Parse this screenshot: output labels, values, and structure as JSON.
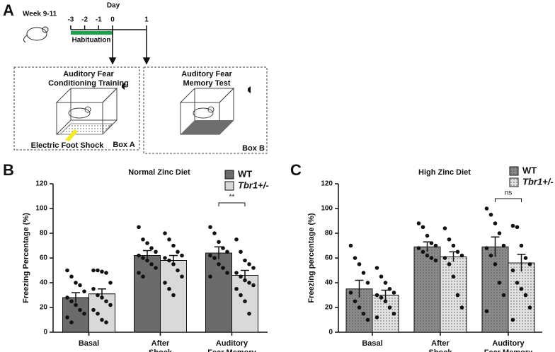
{
  "panel_a": {
    "panel": "A",
    "week": "Week 9-11",
    "day_label": "Day",
    "days": [
      -3,
      -2,
      -1,
      0,
      1
    ],
    "habituation": "Habituation",
    "box_a": {
      "title": [
        "Auditory Fear",
        "Conditioning Training"
      ],
      "shock": "Electric Foot Shock",
      "name": "Box A"
    },
    "box_b": {
      "title": [
        "Auditory Fear",
        "Memory Test"
      ],
      "name": "Box B"
    }
  },
  "chart_data": [
    {
      "type": "bar",
      "panel": "B",
      "title": "Normal Zinc Diet",
      "ylabel": "Freezing Percentage (%)",
      "categories": [
        "Basal",
        "After\nShock",
        "Auditory\nFear Memory"
      ],
      "ylim": [
        0,
        120
      ],
      "yticks": [
        0,
        20,
        40,
        60,
        80,
        100,
        120
      ],
      "pattern": false,
      "series": [
        {
          "name": "WT",
          "color": "#6b6b6b",
          "values": [
            28,
            62,
            64
          ],
          "errors": [
            4,
            4,
            5
          ],
          "points": [
            [
              50,
              45,
              40,
              38,
              33,
              28,
              25,
              22,
              18,
              15,
              12,
              8
            ],
            [
              85,
              75,
              72,
              68,
              65,
              62,
              60,
              58,
              55,
              52,
              48,
              45
            ],
            [
              85,
              80,
              73,
              68,
              65,
              62,
              60,
              55,
              52,
              48,
              45,
              60
            ]
          ]
        },
        {
          "name": "Tbr1+/-",
          "color": "#d9d9d9",
          "values": [
            31,
            58,
            46
          ],
          "errors": [
            4,
            4,
            4
          ],
          "points": [
            [
              50,
              50,
              49,
              48,
              40,
              35,
              30,
              28,
              25,
              22,
              18,
              15,
              10,
              8
            ],
            [
              80,
              75,
              70,
              65,
              62,
              60,
              58,
              55,
              50,
              45,
              40,
              35,
              30
            ],
            [
              75,
              65,
              58,
              55,
              52,
              48,
              45,
              42,
              40,
              38,
              35,
              30,
              25,
              15
            ]
          ]
        }
      ],
      "annotations": [
        {
          "category": 2,
          "text": "**"
        }
      ]
    },
    {
      "type": "bar",
      "panel": "C",
      "title": "High Zinc Diet",
      "ylabel": "Freezing percentage (%)",
      "categories": [
        "Basal",
        "After\nShock",
        "Auditory\nFear Memory"
      ],
      "ylim": [
        0,
        120
      ],
      "yticks": [
        0,
        20,
        40,
        60,
        80,
        100,
        120
      ],
      "pattern": true,
      "series": [
        {
          "name": "WT",
          "color": "#8a8a8a",
          "values": [
            35,
            69,
            69
          ],
          "errors": [
            7,
            4,
            8
          ],
          "points": [
            [
              70,
              60,
              55,
              48,
              40,
              32,
              25,
              20,
              15,
              10
            ],
            [
              88,
              85,
              78,
              72,
              70,
              68,
              65,
              62,
              60,
              58
            ],
            [
              100,
              95,
              88,
              80,
              70,
              68,
              62,
              55,
              40,
              30,
              17
            ]
          ]
        },
        {
          "name": "Tbr1+/-",
          "color": "#e2e2e2",
          "values": [
            30,
            61,
            56
          ],
          "errors": [
            4,
            4,
            7
          ],
          "points": [
            [
              52,
              45,
              40,
              35,
              32,
              30,
              28,
              25,
              20,
              15,
              12
            ],
            [
              84,
              75,
              70,
              65,
              62,
              60,
              55,
              45,
              30,
              20
            ],
            [
              86,
              85,
              70,
              60,
              55,
              50,
              40,
              35,
              30,
              20,
              10
            ]
          ]
        }
      ],
      "annotations": [
        {
          "category": 2,
          "text": "ns"
        }
      ]
    }
  ]
}
